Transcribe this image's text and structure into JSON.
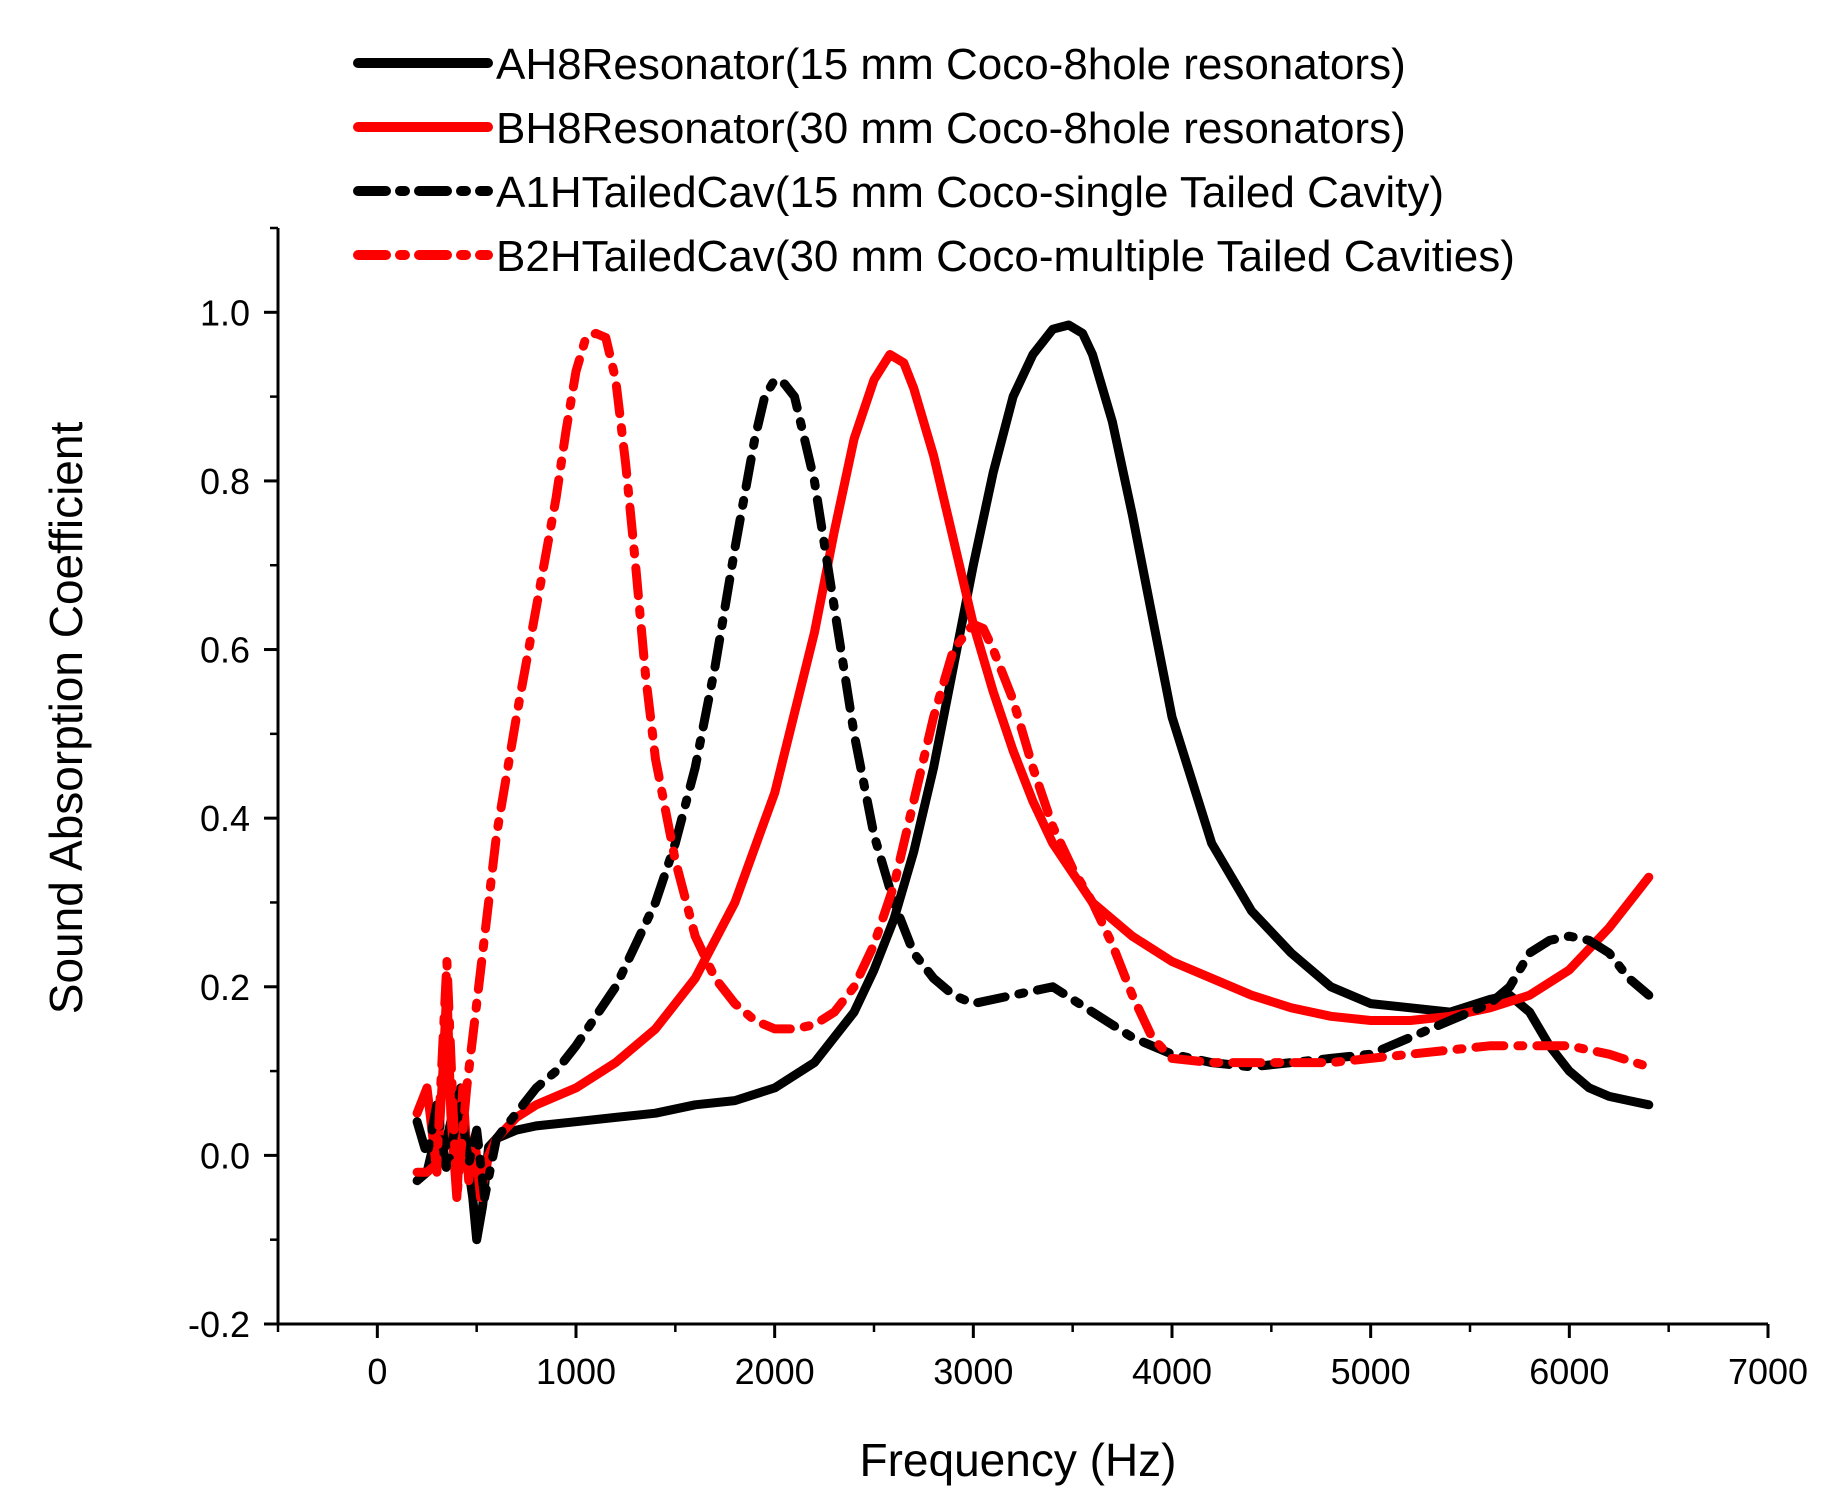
{
  "chart_data": {
    "type": "line",
    "title": "",
    "xlabel": "Frequency (Hz)",
    "ylabel": "Sound Absorption Coefficient",
    "xlim": [
      -500,
      7000
    ],
    "ylim": [
      -0.2,
      1.1
    ],
    "x_ticks": [
      0,
      1000,
      2000,
      3000,
      4000,
      5000,
      6000,
      7000
    ],
    "x_tick_labels": [
      "0",
      "1000",
      "2000",
      "3000",
      "4000",
      "5000",
      "6000",
      "7000"
    ],
    "y_ticks": [
      -0.2,
      0.0,
      0.2,
      0.4,
      0.6,
      0.8,
      1.0
    ],
    "y_tick_labels": [
      "-0.2",
      "0.0",
      "0.2",
      "0.4",
      "0.6",
      "0.8",
      "1.0"
    ],
    "grid": false,
    "legend_position": "top",
    "series": [
      {
        "name": "AH8Resonator(15 mm Coco-8hole resonators)",
        "color": "#000000",
        "style": "solid",
        "x": [
          200,
          250,
          300,
          340,
          380,
          420,
          450,
          480,
          500,
          530,
          560,
          600,
          700,
          800,
          1000,
          1200,
          1400,
          1600,
          1800,
          2000,
          2200,
          2400,
          2500,
          2600,
          2700,
          2800,
          2900,
          3000,
          3100,
          3200,
          3300,
          3400,
          3480,
          3550,
          3600,
          3700,
          3800,
          3900,
          4000,
          4200,
          4400,
          4600,
          4800,
          5000,
          5200,
          5400,
          5600,
          5700,
          5800,
          5900,
          6000,
          6100,
          6200,
          6300,
          6400
        ],
        "y": [
          -0.03,
          -0.02,
          0.03,
          0.01,
          0.05,
          0.08,
          0.0,
          -0.05,
          -0.1,
          -0.06,
          0.01,
          0.02,
          0.03,
          0.035,
          0.04,
          0.045,
          0.05,
          0.06,
          0.065,
          0.08,
          0.11,
          0.17,
          0.22,
          0.28,
          0.36,
          0.46,
          0.58,
          0.7,
          0.81,
          0.9,
          0.95,
          0.98,
          0.985,
          0.975,
          0.95,
          0.87,
          0.76,
          0.64,
          0.52,
          0.37,
          0.29,
          0.24,
          0.2,
          0.18,
          0.175,
          0.17,
          0.185,
          0.19,
          0.17,
          0.13,
          0.1,
          0.08,
          0.07,
          0.065,
          0.06
        ]
      },
      {
        "name": "BH8Resonator(30 mm Coco-8hole resonators)",
        "color": "#ff0000",
        "style": "solid",
        "x": [
          200,
          250,
          300,
          330,
          350,
          370,
          400,
          430,
          460,
          490,
          520,
          560,
          600,
          700,
          800,
          1000,
          1200,
          1400,
          1600,
          1800,
          2000,
          2200,
          2300,
          2400,
          2500,
          2580,
          2650,
          2700,
          2800,
          2900,
          3000,
          3100,
          3200,
          3300,
          3400,
          3600,
          3800,
          4000,
          4200,
          4400,
          4600,
          4800,
          5000,
          5200,
          5400,
          5600,
          5800,
          6000,
          6200,
          6400
        ],
        "y": [
          0.05,
          0.08,
          -0.02,
          0.1,
          0.2,
          0.05,
          -0.05,
          0.08,
          -0.03,
          0.02,
          -0.05,
          0.0,
          0.02,
          0.045,
          0.06,
          0.08,
          0.11,
          0.15,
          0.21,
          0.3,
          0.43,
          0.62,
          0.74,
          0.85,
          0.92,
          0.95,
          0.94,
          0.91,
          0.83,
          0.73,
          0.63,
          0.55,
          0.48,
          0.42,
          0.37,
          0.3,
          0.26,
          0.23,
          0.21,
          0.19,
          0.175,
          0.165,
          0.16,
          0.16,
          0.165,
          0.175,
          0.19,
          0.22,
          0.27,
          0.33
        ]
      },
      {
        "name": "A1HTailedCav(15 mm Coco-single Tailed Cavity)",
        "color": "#000000",
        "style": "dashdot",
        "x": [
          200,
          250,
          300,
          350,
          380,
          420,
          460,
          500,
          540,
          600,
          700,
          800,
          900,
          1000,
          1200,
          1400,
          1500,
          1600,
          1700,
          1800,
          1900,
          1950,
          2000,
          2050,
          2100,
          2200,
          2300,
          2400,
          2500,
          2600,
          2700,
          2800,
          2900,
          3000,
          3200,
          3400,
          3600,
          3800,
          4000,
          4200,
          4400,
          4600,
          4800,
          5000,
          5200,
          5400,
          5600,
          5700,
          5800,
          5900,
          6000,
          6100,
          6200,
          6300,
          6400
        ],
        "y": [
          0.04,
          0.0,
          0.06,
          -0.02,
          0.02,
          0.06,
          -0.01,
          0.03,
          -0.05,
          0.02,
          0.05,
          0.08,
          0.1,
          0.13,
          0.2,
          0.3,
          0.37,
          0.46,
          0.58,
          0.72,
          0.85,
          0.9,
          0.92,
          0.915,
          0.9,
          0.8,
          0.65,
          0.5,
          0.38,
          0.3,
          0.24,
          0.21,
          0.19,
          0.18,
          0.19,
          0.2,
          0.17,
          0.14,
          0.12,
          0.11,
          0.105,
          0.11,
          0.115,
          0.12,
          0.14,
          0.16,
          0.18,
          0.2,
          0.24,
          0.255,
          0.26,
          0.255,
          0.24,
          0.21,
          0.19
        ]
      },
      {
        "name": "B2HTailedCav(30 mm Coco-multiple Tailed Cavities)",
        "color": "#ff0000",
        "style": "dashdot",
        "x": [
          200,
          250,
          300,
          350,
          400,
          450,
          500,
          550,
          600,
          700,
          800,
          900,
          950,
          1000,
          1050,
          1100,
          1150,
          1200,
          1250,
          1300,
          1350,
          1400,
          1500,
          1600,
          1700,
          1800,
          1900,
          2000,
          2100,
          2200,
          2300,
          2400,
          2500,
          2600,
          2700,
          2800,
          2900,
          3000,
          3050,
          3100,
          3200,
          3300,
          3400,
          3500,
          3600,
          3700,
          3800,
          3900,
          4000,
          4200,
          4400,
          4600,
          4800,
          5000,
          5200,
          5400,
          5600,
          5800,
          6000,
          6200,
          6400
        ],
        "y": [
          -0.02,
          -0.02,
          -0.01,
          0.23,
          -0.05,
          0.08,
          0.18,
          0.28,
          0.38,
          0.52,
          0.65,
          0.78,
          0.86,
          0.93,
          0.97,
          0.975,
          0.97,
          0.92,
          0.82,
          0.7,
          0.57,
          0.47,
          0.35,
          0.26,
          0.21,
          0.18,
          0.16,
          0.15,
          0.15,
          0.155,
          0.17,
          0.2,
          0.25,
          0.32,
          0.42,
          0.52,
          0.6,
          0.63,
          0.625,
          0.6,
          0.54,
          0.46,
          0.39,
          0.34,
          0.3,
          0.25,
          0.19,
          0.14,
          0.115,
          0.11,
          0.11,
          0.11,
          0.11,
          0.115,
          0.12,
          0.125,
          0.13,
          0.13,
          0.13,
          0.12,
          0.105
        ]
      }
    ]
  }
}
